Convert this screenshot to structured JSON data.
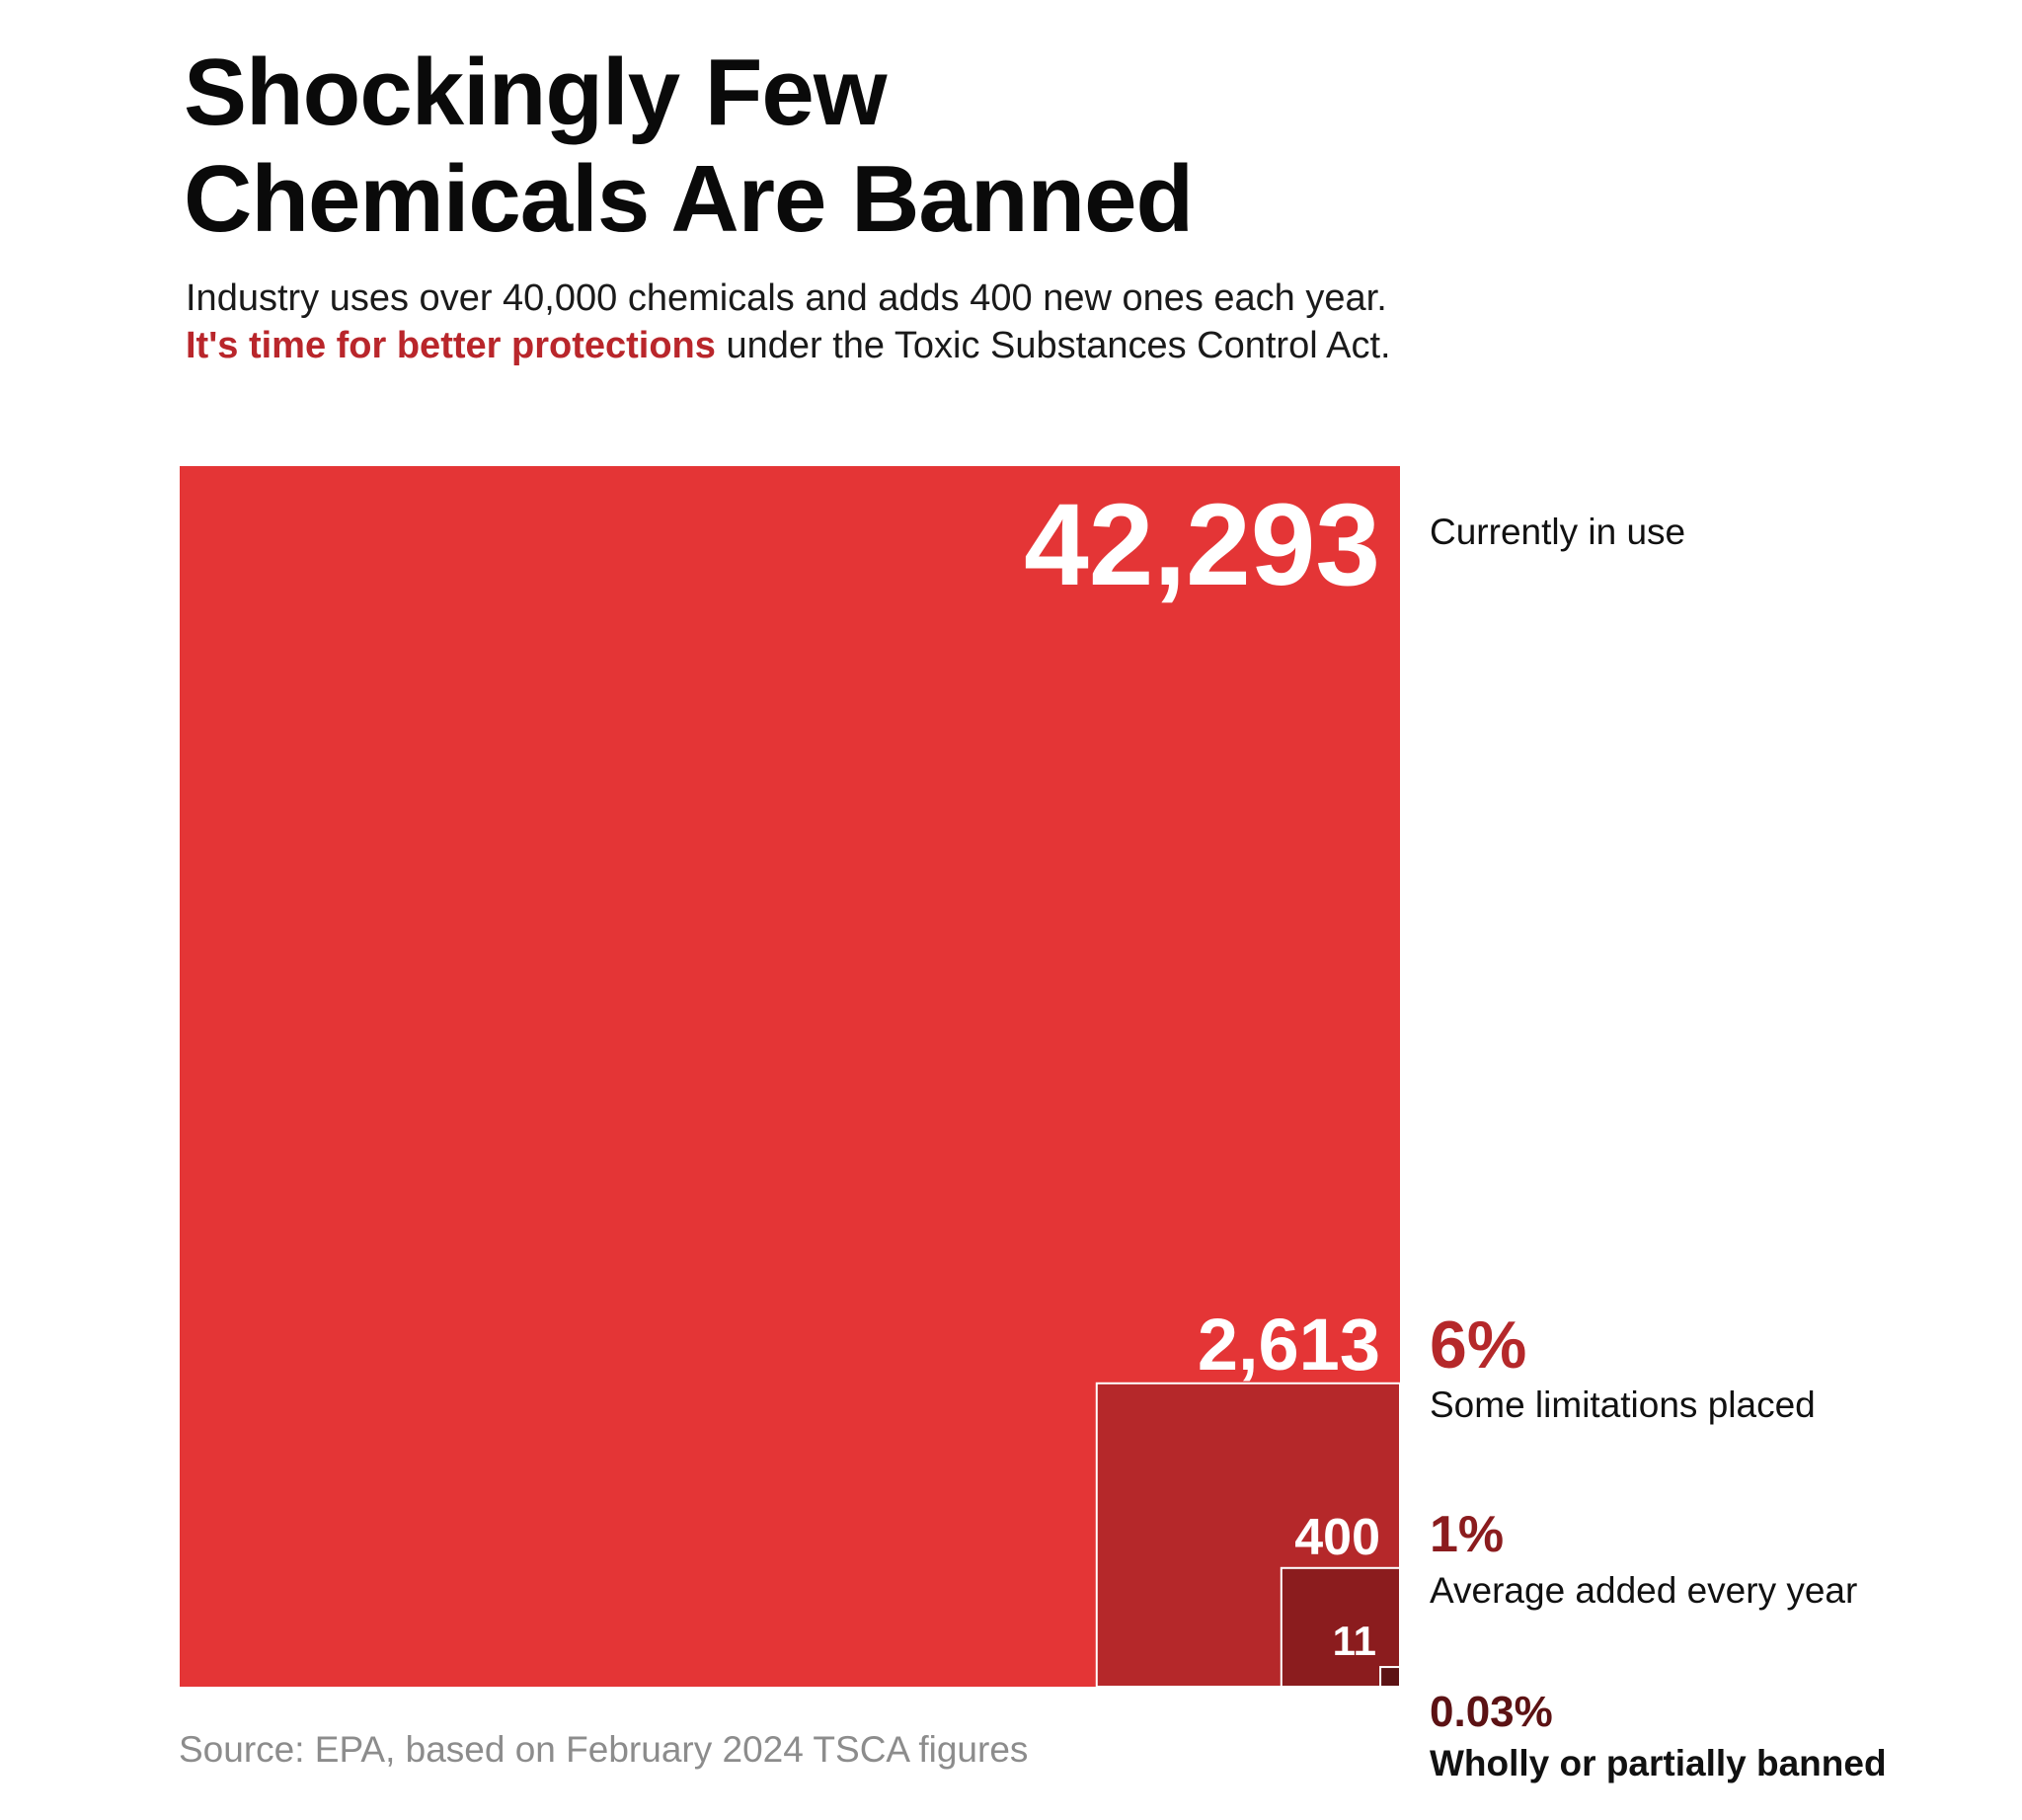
{
  "title_line1": "Shockingly Few",
  "title_line2": "Chemicals Are Banned",
  "subtitle": {
    "part1": "Industry uses over 40,000 chemicals and adds 400 new ones each year.",
    "emphasis": "It's time for better protections",
    "part2": "under the Toxic Substances Control Act."
  },
  "source": "Source: EPA, based on February 2024 TSCA figures",
  "colors": {
    "in_use": "#e43536",
    "limitations": "#b5282a",
    "added": "#8b1c1e",
    "banned": "#5c1214",
    "pct_limitations": "#b5282a",
    "pct_added": "#8b1c1e",
    "pct_banned": "#5c1214"
  },
  "chart_data": {
    "type": "nested-squares",
    "title": "Shockingly Few Chemicals Are Banned",
    "area_proportional": true,
    "anchor": "bottom-right",
    "items": [
      {
        "key": "in_use",
        "value": 42293,
        "value_label": "42,293",
        "percent": "",
        "label": "Currently in use"
      },
      {
        "key": "limitations",
        "value": 2613,
        "value_label": "2,613",
        "percent": "6%",
        "label": "Some limitations placed"
      },
      {
        "key": "added",
        "value": 400,
        "value_label": "400",
        "percent": "1%",
        "label": "Average added every year"
      },
      {
        "key": "banned",
        "value": 11,
        "value_label": "11",
        "percent": "0.03%",
        "label": "Wholly or partially banned"
      }
    ]
  }
}
